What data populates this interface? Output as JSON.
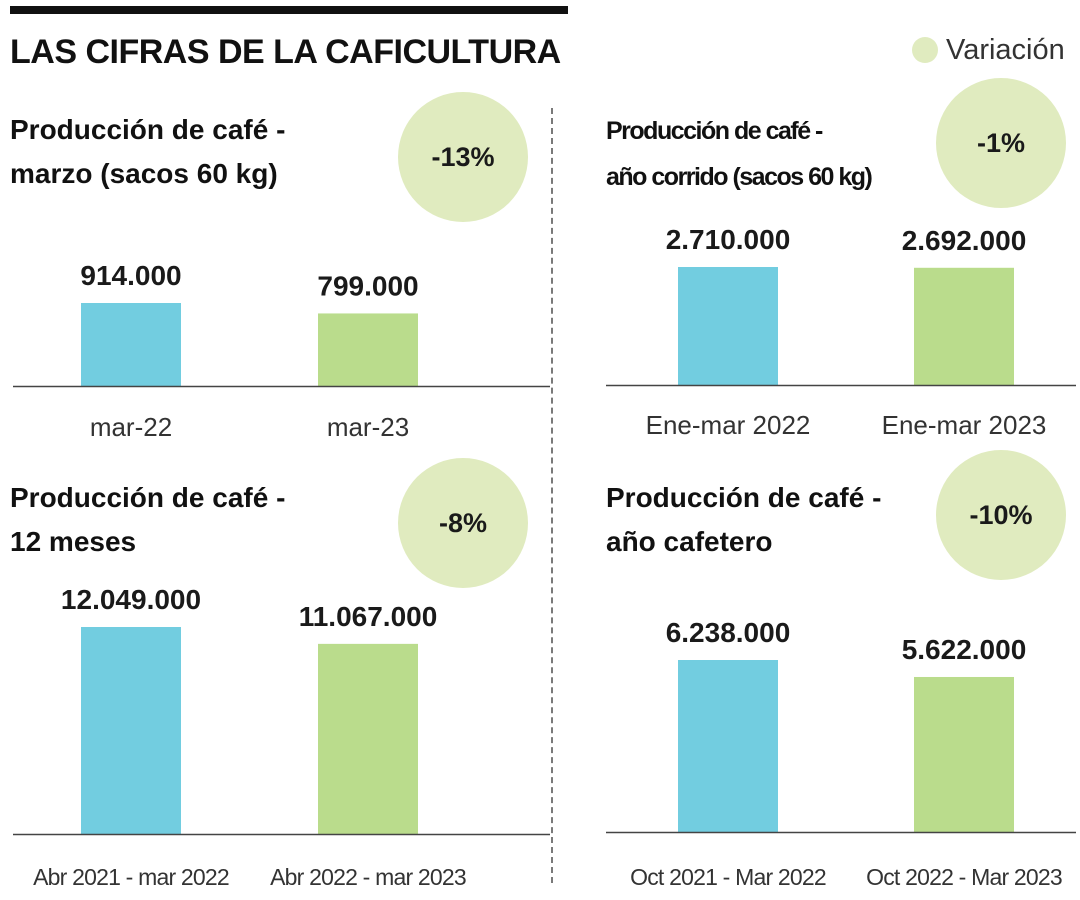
{
  "header": {
    "title": "LAS CIFRAS DE LA CAFICULTURA",
    "legend_label": "Variación"
  },
  "colors": {
    "prior_period": "#72cde0",
    "current_period": "#badc8c",
    "variation_circle": "#e0ebbf"
  },
  "chart_data": [
    {
      "type": "bar",
      "title_lines": [
        "Producción de café -",
        "marzo (sacos 60 kg)"
      ],
      "variation": "-13%",
      "categories": [
        "mar-22",
        "mar-23"
      ],
      "values": [
        914000,
        799000
      ],
      "value_labels": [
        "914.000",
        "799.000"
      ]
    },
    {
      "type": "bar",
      "title_lines": [
        "Producción de café -",
        "año corrido (sacos 60 kg)"
      ],
      "variation": "-1%",
      "categories": [
        "Ene-mar 2022",
        "Ene-mar 2023"
      ],
      "values": [
        2710000,
        2692000
      ],
      "value_labels": [
        "2.710.000",
        "2.692.000"
      ]
    },
    {
      "type": "bar",
      "title_lines": [
        "Producción de café -",
        "12 meses"
      ],
      "variation": "-8%",
      "categories": [
        "Abr 2021 - mar 2022",
        "Abr 2022 - mar 2023"
      ],
      "values": [
        12049000,
        11067000
      ],
      "value_labels": [
        "12.049.000",
        "11.067.000"
      ]
    },
    {
      "type": "bar",
      "title_lines": [
        "Producción de café -",
        "año cafetero"
      ],
      "variation": "-10%",
      "categories": [
        "Oct 2021 - Mar 2022",
        "Oct 2022 - Mar 2023"
      ],
      "values": [
        6238000,
        5622000
      ],
      "value_labels": [
        "6.238.000",
        "5.622.000"
      ]
    }
  ]
}
